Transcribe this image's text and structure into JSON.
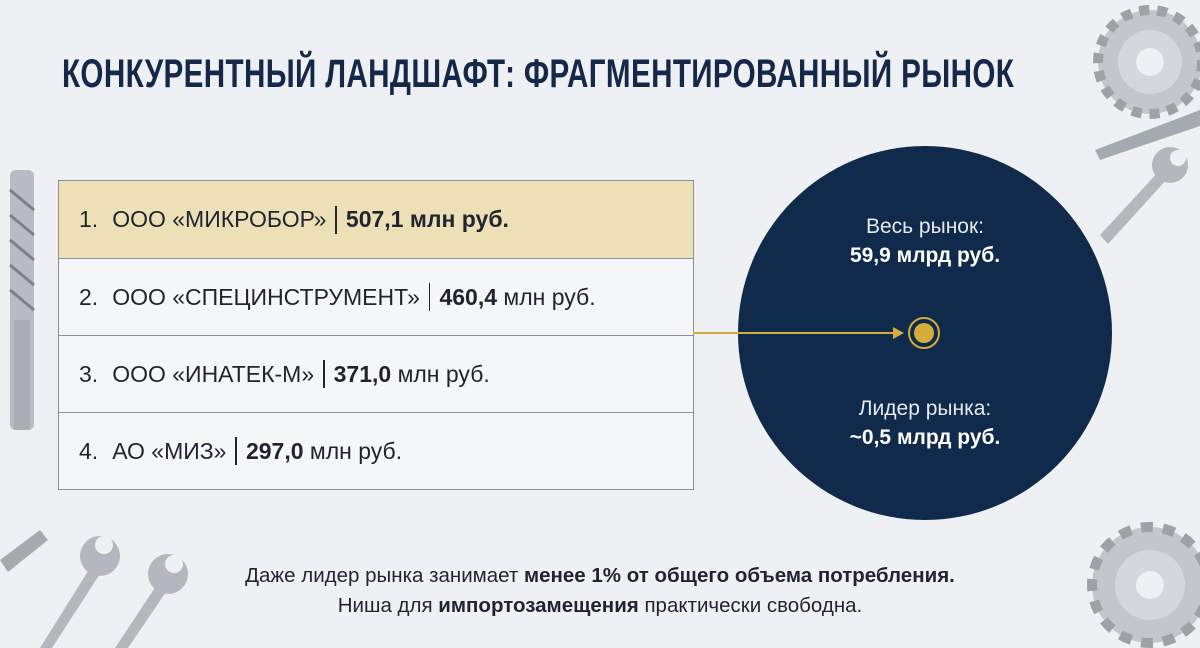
{
  "title": "КОНКУРЕНТНЫЙ ЛАНДШАФТ: ФРАГМЕНТИРОВАННЫЙ РЫНОК",
  "competitors": [
    {
      "rank": "1.",
      "name": "ООО «МИКРОБОР»",
      "value": "507,1",
      "unit": "млн руб.",
      "highlighted": true
    },
    {
      "rank": "2.",
      "name": "ООО «СПЕЦИНСТРУМЕНТ»",
      "value": "460,4",
      "unit": "млн руб.",
      "highlighted": false
    },
    {
      "rank": "3.",
      "name": "ООО «ИНАТЕК-М»",
      "value": "371,0",
      "unit": "млн руб.",
      "highlighted": false
    },
    {
      "rank": "4.",
      "name": "АО «МИЗ»",
      "value": "297,0",
      "unit": "млн руб.",
      "highlighted": false
    }
  ],
  "market": {
    "total_label": "Весь рынок:",
    "total_value": "59,9 млрд руб.",
    "leader_label": "Лидер рынка:",
    "leader_value": "~0,5 млрд руб."
  },
  "footer": {
    "line1_pre": "Даже лидер рынка занимает ",
    "line1_bold": "менее 1% от общего объема потребления.",
    "line2_pre": "Ниша для ",
    "line2_bold": "импортозамещения",
    "line2_post": " практически свободна."
  },
  "colors": {
    "navy": "#0f2a4a",
    "gold": "#d4ae3c",
    "highlight": "#ede0b6",
    "background": "#eef0f4"
  }
}
